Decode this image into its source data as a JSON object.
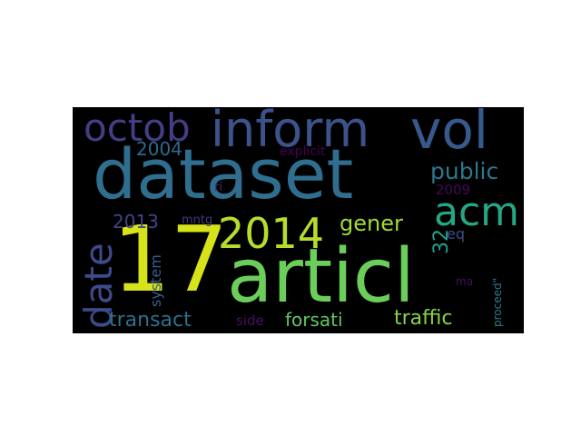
{
  "word_cloud": {
    "background": "#000000",
    "words": [
      {
        "key": "dataset",
        "text": "dataset",
        "color": "#2f6e8e"
      },
      {
        "key": "17",
        "text": "17",
        "color": "#d6e21a"
      },
      {
        "key": "articl",
        "text": "articl",
        "color": "#6cce5a"
      },
      {
        "key": "inform",
        "text": "inform",
        "color": "#3b528b"
      },
      {
        "key": "vol",
        "text": "vol",
        "color": "#38598c"
      },
      {
        "key": "octob",
        "text": "octob",
        "color": "#433e85"
      },
      {
        "key": "acm",
        "text": "acm",
        "color": "#26a784"
      },
      {
        "key": "y2014",
        "text": "2014",
        "color": "#b5de2b"
      },
      {
        "key": "date",
        "text": "date",
        "color": "#3e4a89"
      },
      {
        "key": "public",
        "text": "public",
        "color": "#2a788e"
      },
      {
        "key": "gener",
        "text": "gener",
        "color": "#a2da37"
      },
      {
        "key": "y2004",
        "text": "2004",
        "color": "#31688e"
      },
      {
        "key": "y2013",
        "text": "2013",
        "color": "#414487"
      },
      {
        "key": "transact",
        "text": "transact",
        "color": "#2c718e"
      },
      {
        "key": "forsati",
        "text": "forsati",
        "color": "#5ec962"
      },
      {
        "key": "traffic",
        "text": "traffic",
        "color": "#84d44b"
      },
      {
        "key": "n32",
        "text": "32",
        "color": "#1fa187"
      },
      {
        "key": "eq",
        "text": "eq",
        "color": "#3d4d8a"
      },
      {
        "key": "y2009",
        "text": "2009",
        "color": "#46085c"
      },
      {
        "key": "explicit",
        "text": "explicit",
        "color": "#440154"
      },
      {
        "key": "ri",
        "text": "ri",
        "color": "#482677"
      },
      {
        "key": "mntg",
        "text": "mntg",
        "color": "#453581"
      },
      {
        "key": "system",
        "text": "system",
        "color": "#355f8d"
      },
      {
        "key": "side",
        "text": "side",
        "color": "#471063"
      },
      {
        "key": "ma",
        "text": "ma",
        "color": "#470e61"
      },
      {
        "key": "proceed",
        "text": "proceed\"",
        "color": "#277f8e"
      }
    ]
  }
}
